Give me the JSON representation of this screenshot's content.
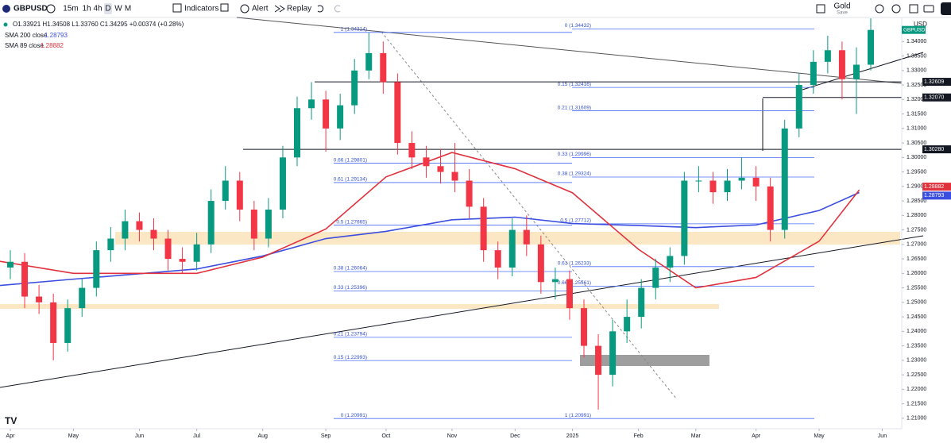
{
  "ui": {
    "symbol": "GBPUSD",
    "timeframes": [
      "15m",
      "1h",
      "4h",
      "D",
      "W",
      "M"
    ],
    "buttons": [
      "Indicators",
      "Alert",
      "Replay"
    ],
    "layout_name": "Gold",
    "save": "Save",
    "currency": "USD",
    "ohlc": "O1.33921 H1.34508 L1.33760 C1.34295 +0.00374 (+0.28%)"
  },
  "chart_data": {
    "type": "candlestick",
    "x": [
      0,
      5,
      10,
      15,
      20,
      25,
      30,
      35,
      40,
      45,
      50,
      55,
      60,
      65,
      70,
      75,
      80,
      85,
      90,
      95,
      100,
      105,
      110,
      115,
      120,
      125,
      130,
      135,
      140,
      145,
      150,
      155,
      160,
      165,
      170,
      175,
      180,
      185,
      190,
      195,
      200,
      205,
      210,
      215,
      220,
      225,
      230,
      235,
      240,
      245,
      250,
      255,
      260,
      265,
      270,
      275,
      280,
      285,
      290,
      295,
      300
    ],
    "open": [
      1.262,
      1.264,
      1.252,
      1.25,
      1.236,
      1.248,
      1.255,
      1.268,
      1.272,
      1.278,
      1.275,
      1.272,
      1.265,
      1.264,
      1.27,
      1.285,
      1.292,
      1.282,
      1.272,
      1.282,
      1.3,
      1.317,
      1.32,
      1.31,
      1.318,
      1.33,
      1.336,
      1.326,
      1.305,
      1.3,
      1.297,
      1.295,
      1.292,
      1.283,
      1.268,
      1.262,
      1.275,
      1.27,
      1.257,
      1.258,
      1.248,
      1.235,
      1.225,
      1.24,
      1.245,
      1.255,
      1.262,
      1.266,
      1.292,
      1.292,
      1.288,
      1.292,
      1.293,
      1.29,
      1.275,
      1.31,
      1.325,
      1.333,
      1.337,
      1.327,
      1.332
    ],
    "high": [
      1.268,
      1.267,
      1.256,
      1.253,
      1.251,
      1.258,
      1.271,
      1.276,
      1.282,
      1.281,
      1.279,
      1.275,
      1.269,
      1.274,
      1.289,
      1.297,
      1.295,
      1.285,
      1.286,
      1.304,
      1.321,
      1.326,
      1.323,
      1.322,
      1.334,
      1.343,
      1.34,
      1.329,
      1.309,
      1.304,
      1.303,
      1.305,
      1.296,
      1.286,
      1.271,
      1.279,
      1.28,
      1.273,
      1.262,
      1.261,
      1.251,
      1.239,
      1.244,
      1.251,
      1.258,
      1.265,
      1.269,
      1.295,
      1.297,
      1.295,
      1.296,
      1.3,
      1.297,
      1.293,
      1.313,
      1.329,
      1.337,
      1.342,
      1.34,
      1.338,
      1.348
    ],
    "low": [
      1.258,
      1.248,
      1.246,
      1.23,
      1.233,
      1.245,
      1.252,
      1.264,
      1.268,
      1.271,
      1.268,
      1.261,
      1.26,
      1.261,
      1.267,
      1.282,
      1.278,
      1.268,
      1.269,
      1.279,
      1.297,
      1.313,
      1.302,
      1.306,
      1.315,
      1.327,
      1.322,
      1.301,
      1.296,
      1.293,
      1.291,
      1.288,
      1.279,
      1.264,
      1.258,
      1.259,
      1.266,
      1.253,
      1.251,
      1.244,
      1.231,
      1.213,
      1.221,
      1.236,
      1.241,
      1.251,
      1.257,
      1.263,
      1.288,
      1.284,
      1.285,
      1.289,
      1.285,
      1.271,
      1.272,
      1.307,
      1.322,
      1.329,
      1.32,
      1.315,
      1.33
    ],
    "close": [
      1.264,
      1.252,
      1.25,
      1.236,
      1.248,
      1.255,
      1.268,
      1.272,
      1.278,
      1.275,
      1.272,
      1.265,
      1.264,
      1.27,
      1.285,
      1.292,
      1.282,
      1.272,
      1.282,
      1.3,
      1.317,
      1.32,
      1.31,
      1.318,
      1.33,
      1.336,
      1.326,
      1.305,
      1.3,
      1.297,
      1.295,
      1.292,
      1.283,
      1.268,
      1.262,
      1.275,
      1.27,
      1.257,
      1.258,
      1.248,
      1.235,
      1.225,
      1.24,
      1.245,
      1.255,
      1.262,
      1.266,
      1.292,
      1.292,
      1.288,
      1.292,
      1.293,
      1.29,
      1.275,
      1.31,
      1.325,
      1.333,
      1.337,
      1.327,
      1.332,
      1.344
    ],
    "up_color": "#089981",
    "down_color": "#f23645",
    "series": [
      {
        "name": "SMA 200 close",
        "color": "#3b4ee0",
        "last": 1.28793,
        "x": [
          -4,
          22,
          65,
          88,
          110,
          131,
          154,
          176,
          196,
          219,
          239,
          260,
          282,
          296
        ],
        "values": [
          1.2558,
          1.258,
          1.2615,
          1.266,
          1.272,
          1.2745,
          1.2785,
          1.2794,
          1.2772,
          1.2765,
          1.2758,
          1.2767,
          1.2817,
          1.2879
        ]
      },
      {
        "name": "SMA 89 close",
        "color": "#e0323c",
        "last": 1.28882,
        "x": [
          -4,
          22,
          65,
          88,
          110,
          131,
          154,
          176,
          196,
          219,
          239,
          260,
          282,
          296
        ],
        "values": [
          1.2642,
          1.26,
          1.26,
          1.2656,
          1.2753,
          1.2933,
          1.3017,
          1.2961,
          1.2878,
          1.2683,
          1.255,
          1.2586,
          1.2711,
          1.2888
        ]
      }
    ],
    "fib_left": [
      {
        "label": "1 (1.34314)",
        "value": 1.34314
      },
      {
        "label": "0.66 (1.29801)",
        "value": 1.29801
      },
      {
        "label": "0.61 (1.29134)",
        "value": 1.29134
      },
      {
        "label": "0.5 (1.27665)",
        "value": 1.27665
      },
      {
        "label": "0.38 (1.26064)",
        "value": 1.26064
      },
      {
        "label": "0.33 (1.25396)",
        "value": 1.25396
      },
      {
        "label": "0.21 (1.23794)",
        "value": 1.23794
      },
      {
        "label": "0.15 (1.22993)",
        "value": 1.22993
      },
      {
        "label": "0 (1.20991)",
        "value": 1.20991
      }
    ],
    "fib_right": [
      {
        "label": "0 (1.34432)",
        "value": 1.34432
      },
      {
        "label": "0.15 (1.32416)",
        "value": 1.32416
      },
      {
        "label": "0.21 (1.31609)",
        "value": 1.31609
      },
      {
        "label": "0.33 (1.29996)",
        "value": 1.29996
      },
      {
        "label": "0.38 (1.29324)",
        "value": 1.29324
      },
      {
        "label": "0.5 (1.27712)",
        "value": 1.27712
      },
      {
        "label": "0.61 (1.26233)",
        "value": 1.26233
      },
      {
        "label": "0.66 (1.25561)",
        "value": 1.25561
      },
      {
        "label": "1 (1.20991)",
        "value": 1.20991
      }
    ],
    "levels": [
      1.32609,
      {
        "value": 1.3207,
        "label": "1.32070"
      },
      {
        "value": 1.3028,
        "label": "1.30280"
      }
    ],
    "xlim": [
      -3.6,
      310.8
    ],
    "xticks": [
      {
        "value": 0,
        "label": "Apr"
      },
      {
        "value": 22,
        "label": "May"
      },
      {
        "value": 45,
        "label": "Jun"
      },
      {
        "value": 65,
        "label": "Jul"
      },
      {
        "value": 88,
        "label": "Aug"
      },
      {
        "value": 110,
        "label": "Sep"
      },
      {
        "value": 131,
        "label": "Oct"
      },
      {
        "value": 154,
        "label": "Nov"
      },
      {
        "value": 176,
        "label": "Dec"
      },
      {
        "value": 196,
        "label": "2025"
      },
      {
        "value": 219,
        "label": "Feb"
      },
      {
        "value": 239,
        "label": "Mar"
      },
      {
        "value": 260,
        "label": "Apr"
      },
      {
        "value": 282,
        "label": "May"
      },
      {
        "value": 304,
        "label": "Jun"
      }
    ],
    "ylim": [
      1.2064,
      1.3483
    ],
    "yticks": [
      {
        "value": 1.34,
        "label": "1.34000"
      },
      {
        "value": 1.335,
        "label": "1.33500"
      },
      {
        "value": 1.33,
        "label": "1.33000"
      },
      {
        "value": 1.325,
        "label": "1.32500"
      },
      {
        "value": 1.32,
        "label": "1.32000"
      },
      {
        "value": 1.315,
        "label": "1.31500"
      },
      {
        "value": 1.31,
        "label": "1.31000"
      },
      {
        "value": 1.305,
        "label": "1.30500"
      },
      {
        "value": 1.3,
        "label": "1.30000"
      },
      {
        "value": 1.295,
        "label": "1.29500"
      },
      {
        "value": 1.29,
        "label": "1.29000"
      },
      {
        "value": 1.285,
        "label": "1.28500"
      },
      {
        "value": 1.28,
        "label": "1.28000"
      },
      {
        "value": 1.275,
        "label": "1.27500"
      },
      {
        "value": 1.27,
        "label": "1.27000"
      },
      {
        "value": 1.265,
        "label": "1.26500"
      },
      {
        "value": 1.26,
        "label": "1.26000"
      },
      {
        "value": 1.255,
        "label": "1.25500"
      },
      {
        "value": 1.25,
        "label": "1.25000"
      },
      {
        "value": 1.245,
        "label": "1.24500"
      },
      {
        "value": 1.24,
        "label": "1.24000"
      },
      {
        "value": 1.235,
        "label": "1.23500"
      },
      {
        "value": 1.23,
        "label": "1.23000"
      },
      {
        "value": 1.225,
        "label": "1.22500"
      },
      {
        "value": 1.22,
        "label": "1.22000"
      },
      {
        "value": 1.215,
        "label": "1.21500"
      },
      {
        "value": 1.21,
        "label": "1.21000"
      }
    ]
  }
}
